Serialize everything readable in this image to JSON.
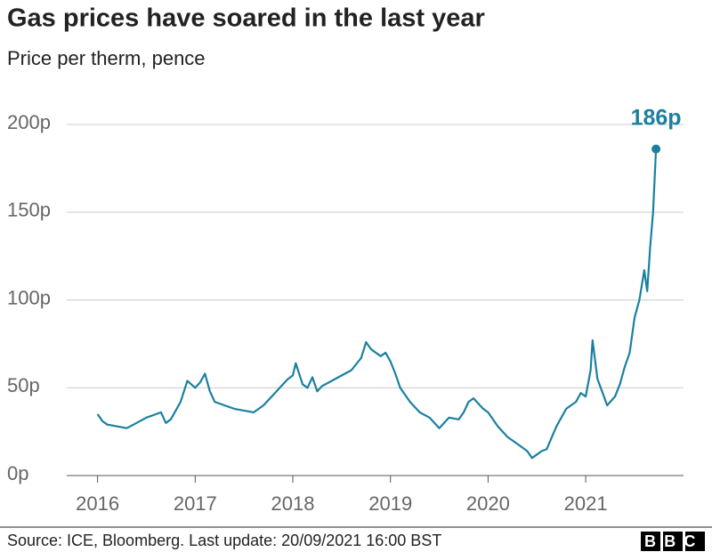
{
  "chart_data": {
    "type": "line",
    "title": "Gas prices have soared in the last year",
    "subtitle": "Price per therm, pence",
    "source": "Source: ICE, Bloomberg. Last update: 20/09/2021 16:00 BST",
    "logo": "BBC",
    "x": [
      2016.0,
      2016.05,
      2016.1,
      2016.2,
      2016.3,
      2016.4,
      2016.5,
      2016.6,
      2016.65,
      2016.7,
      2016.75,
      2016.85,
      2016.92,
      2017.0,
      2017.05,
      2017.1,
      2017.15,
      2017.2,
      2017.3,
      2017.4,
      2017.5,
      2017.6,
      2017.7,
      2017.8,
      2017.9,
      2017.95,
      2018.0,
      2018.03,
      2018.1,
      2018.15,
      2018.2,
      2018.25,
      2018.3,
      2018.4,
      2018.5,
      2018.6,
      2018.7,
      2018.75,
      2018.8,
      2018.9,
      2018.95,
      2019.0,
      2019.05,
      2019.1,
      2019.2,
      2019.3,
      2019.4,
      2019.5,
      2019.55,
      2019.6,
      2019.7,
      2019.75,
      2019.8,
      2019.85,
      2019.95,
      2020.0,
      2020.1,
      2020.2,
      2020.3,
      2020.4,
      2020.45,
      2020.5,
      2020.55,
      2020.6,
      2020.7,
      2020.8,
      2020.9,
      2020.95,
      2021.0,
      2021.05,
      2021.07,
      2021.12,
      2021.18,
      2021.22,
      2021.3,
      2021.35,
      2021.4,
      2021.45,
      2021.5,
      2021.55,
      2021.6,
      2021.63,
      2021.66,
      2021.69,
      2021.72
    ],
    "series": [
      {
        "name": "Price per therm",
        "color": "#1a80a0",
        "values": [
          35,
          31,
          29,
          28,
          27,
          30,
          33,
          35,
          36,
          30,
          32,
          42,
          54,
          50,
          53,
          58,
          48,
          42,
          40,
          38,
          37,
          36,
          40,
          46,
          52,
          55,
          57,
          64,
          52,
          50,
          56,
          48,
          51,
          54,
          57,
          60,
          67,
          76,
          72,
          68,
          70,
          65,
          58,
          50,
          42,
          36,
          33,
          27,
          30,
          33,
          32,
          36,
          42,
          44,
          38,
          36,
          28,
          22,
          18,
          14,
          10,
          12,
          14,
          15,
          28,
          38,
          42,
          47,
          45,
          60,
          77,
          55,
          46,
          40,
          45,
          52,
          62,
          70,
          90,
          100,
          117,
          105,
          130,
          150,
          186
        ],
        "value_labels": [
          null,
          null,
          null,
          null,
          null,
          null,
          null,
          null,
          null,
          null,
          null,
          null,
          null,
          null,
          null,
          null,
          null,
          null,
          null,
          null,
          null,
          null,
          null,
          null,
          null,
          null,
          null,
          null,
          null,
          null,
          null,
          null,
          null,
          null,
          null,
          null,
          null,
          null,
          null,
          null,
          null,
          null,
          null,
          null,
          null,
          null,
          null,
          null,
          null,
          null,
          null,
          null,
          null,
          null,
          null,
          null,
          null,
          null,
          null,
          null,
          null,
          null,
          null,
          null,
          null,
          null,
          null,
          null,
          null,
          null,
          null,
          null,
          null,
          null,
          null,
          null,
          null,
          null,
          null,
          null,
          null,
          null,
          null,
          null,
          "186p"
        ]
      }
    ],
    "xlim": [
      2015.73,
      2022.02
    ],
    "xticks": [
      2016,
      2017,
      2018,
      2019,
      2020,
      2021
    ],
    "ylim": [
      0,
      200
    ],
    "yticks": [
      {
        "value": 0,
        "label": "0p"
      },
      {
        "value": 50,
        "label": "50p"
      },
      {
        "value": 100,
        "label": "100p"
      },
      {
        "value": 150,
        "label": "150p"
      },
      {
        "value": 200,
        "label": "200p"
      }
    ],
    "grid": true
  }
}
